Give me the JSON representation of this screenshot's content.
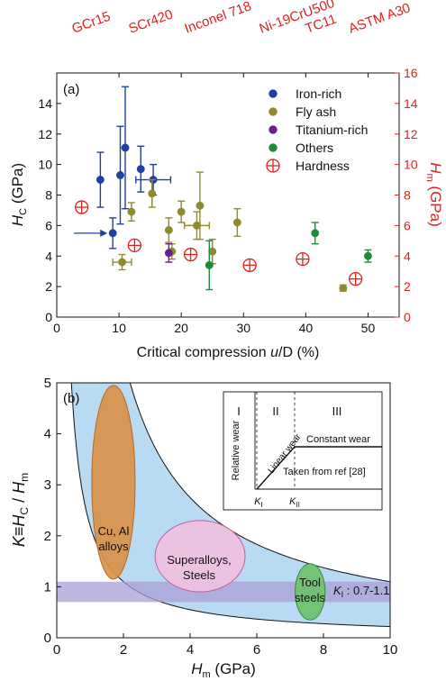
{
  "chart_data": [
    {
      "type": "scatter",
      "panel_label": "(a)",
      "top_labels": [
        "GCr15",
        "SCr420",
        "Inconel 718",
        "Ni-19CrU500",
        "TC11",
        "ASTM A30"
      ],
      "xlabel_main": "Critical compression ",
      "xlabel_ital": "u",
      "xlabel_tail": "/D (%)",
      "ylabel_left_main": "H",
      "ylabel_left_sub": "C",
      "ylabel_left_tail": " (GPa)",
      "ylabel_right_main": "H",
      "ylabel_right_sub": "m",
      "ylabel_right_tail": " (GPa)",
      "xlim": [
        0,
        55
      ],
      "ylim_left": [
        0,
        16
      ],
      "ylim_right": [
        0,
        16
      ],
      "x_ticks": [
        0,
        10,
        20,
        30,
        40,
        50
      ],
      "y_ticks_left": [
        0,
        2,
        4,
        6,
        8,
        10,
        12,
        14
      ],
      "y_ticks_right": [
        0,
        2,
        4,
        6,
        8,
        10,
        12,
        14,
        16
      ],
      "grid": false,
      "legend_position": "top-right",
      "series": [
        {
          "name": "Iron-rich",
          "color": "#1f3fa3",
          "marker": "circle",
          "points": [
            {
              "x": 7,
              "y": 9.0,
              "yerr": 1.8
            },
            {
              "x": 9,
              "y": 5.5,
              "yerr": 1.0
            },
            {
              "x": 10.2,
              "y": 9.3,
              "yerr": 3.2
            },
            {
              "x": 11,
              "y": 11.1,
              "yerr": 4.0
            },
            {
              "x": 13.5,
              "y": 9.7,
              "yerr": 1.5
            },
            {
              "x": 15.5,
              "y": 9.0,
              "yerr": 1.0,
              "xerr": 2.8
            }
          ]
        },
        {
          "name": "Fly ash",
          "color": "#8f8a2e",
          "marker": "circle",
          "points": [
            {
              "x": 10.5,
              "y": 3.6,
              "yerr": 0.5,
              "xerr": 1.5
            },
            {
              "x": 12,
              "y": 6.9,
              "yerr": 0.6
            },
            {
              "x": 15.3,
              "y": 8.1,
              "yerr": 0.9
            },
            {
              "x": 18,
              "y": 5.7,
              "yerr": 0.8
            },
            {
              "x": 18.5,
              "y": 4.3,
              "yerr": 0.5
            },
            {
              "x": 20,
              "y": 6.9,
              "yerr": 0.7
            },
            {
              "x": 22.5,
              "y": 6.0,
              "yerr": 0.9,
              "xerr": 2.0
            },
            {
              "x": 23,
              "y": 7.3,
              "yerr": 2.2
            },
            {
              "x": 25,
              "y": 4.3,
              "yerr": 0.8
            },
            {
              "x": 29,
              "y": 6.2,
              "yerr": 0.9
            },
            {
              "x": 46,
              "y": 1.9,
              "yerr": 0.2
            }
          ]
        },
        {
          "name": "Titanium-rich",
          "color": "#6a1f8a",
          "marker": "circle",
          "points": [
            {
              "x": 18,
              "y": 4.2,
              "yerr": 0.6
            }
          ]
        },
        {
          "name": "Others",
          "color": "#1f8a3a",
          "marker": "circle",
          "points": [
            {
              "x": 24.5,
              "y": 3.4,
              "yerr": 1.6
            },
            {
              "x": 41.5,
              "y": 5.5,
              "yerr": 0.7
            },
            {
              "x": 50,
              "y": 4.0,
              "yerr": 0.4
            }
          ]
        },
        {
          "name": "Hardness",
          "color": "#e0201b",
          "marker": "crossed-circle",
          "axis": "right",
          "points": [
            {
              "x": 4,
              "y": 7.2
            },
            {
              "x": 12.5,
              "y": 4.7
            },
            {
              "x": 21.5,
              "y": 4.1
            },
            {
              "x": 31,
              "y": 3.4
            },
            {
              "x": 39.5,
              "y": 3.8
            },
            {
              "x": 48,
              "y": 2.5
            }
          ]
        }
      ],
      "annotation_arrow": {
        "target_x": 9,
        "target_y": 5.5
      }
    },
    {
      "type": "diagram-plot",
      "panel_label": "(b)",
      "xlabel_main": "H",
      "xlabel_sub": "m",
      "xlabel_tail": " (GPa)",
      "ylabel_parts": {
        "k": "K",
        "eq": "≡",
        "hc": "H",
        "hc_sub": "C",
        "slash": " / ",
        "hm": "H",
        "hm_sub": "m"
      },
      "xlim": [
        0,
        10
      ],
      "ylim": [
        0,
        5
      ],
      "x_ticks": [
        0,
        2,
        4,
        6,
        8,
        10
      ],
      "y_ticks": [
        0,
        1,
        2,
        3,
        4,
        5
      ],
      "band_color": "#b8daf2",
      "band_upper_constant": 11,
      "band_lower_constant": 2.2,
      "ki_band": {
        "y_from": 0.7,
        "y_to": 1.1,
        "color": "#a99fd6",
        "label_k": "K",
        "label_sub": "I",
        "label_tail": " : 0.7-1.1"
      },
      "regions": [
        {
          "label_lines": [
            "Cu, Al",
            "alloys"
          ],
          "cx": 1.7,
          "cy": 3.05,
          "rx": 0.65,
          "ry": 1.9,
          "fill": "#d9924a",
          "stroke": "#b86a20"
        },
        {
          "label_lines": [
            "Superalloys,",
            "Steels"
          ],
          "cx": 4.3,
          "cy": 1.6,
          "rx": 1.35,
          "ry": 0.7,
          "fill": "#f0c0e0",
          "stroke": "#c060a0"
        },
        {
          "label_lines": [
            "Tool",
            "steels"
          ],
          "cx": 7.6,
          "cy": 0.9,
          "rx": 0.45,
          "ry": 0.55,
          "fill": "#6cc26c",
          "stroke": "#3a8a3a"
        }
      ],
      "inset": {
        "region_labels": [
          "I",
          "II",
          "III"
        ],
        "ylabel": "Relative wear",
        "linear_label": "Linear wear",
        "constant_label": "Constant wear",
        "source_label": "Taken from ref [28]",
        "k1_main": "K",
        "k1_sub": "I",
        "k2_main": "K",
        "k2_sub": "II"
      }
    }
  ]
}
